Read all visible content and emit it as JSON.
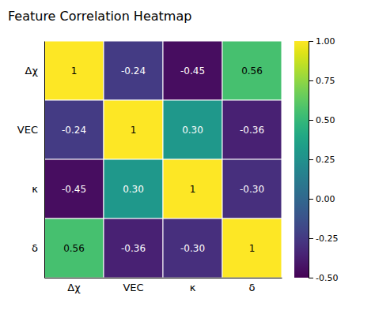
{
  "chart_data": {
    "type": "heatmap",
    "title": "Feature Correlation Heatmap",
    "categories": [
      "Δχ",
      "VEC",
      "κ",
      "δ"
    ],
    "values": [
      [
        1.0,
        -0.24,
        -0.45,
        0.56
      ],
      [
        -0.24,
        1.0,
        0.3,
        -0.36
      ],
      [
        -0.45,
        0.3,
        1.0,
        -0.3
      ],
      [
        0.56,
        -0.36,
        -0.3,
        1.0
      ]
    ],
    "value_labels": [
      [
        "1",
        "-0.24",
        "-0.45",
        "0.56"
      ],
      [
        "-0.24",
        "1",
        "0.30",
        "-0.36"
      ],
      [
        "-0.45",
        "0.30",
        "1",
        "-0.30"
      ],
      [
        "0.56",
        "-0.36",
        "-0.30",
        "1"
      ]
    ],
    "data_labels": true,
    "colorbar_range": [
      -0.5,
      1.0
    ],
    "colorbar_ticks": [
      {
        "value": 1.0,
        "label": "1.00"
      },
      {
        "value": 0.75,
        "label": "0.75"
      },
      {
        "value": 0.5,
        "label": "0.50"
      },
      {
        "value": 0.25,
        "label": "0.25"
      },
      {
        "value": 0.0,
        "label": "0.00"
      },
      {
        "value": -0.25,
        "label": "-0.25"
      },
      {
        "value": -0.5,
        "label": "-0.50"
      }
    ]
  }
}
